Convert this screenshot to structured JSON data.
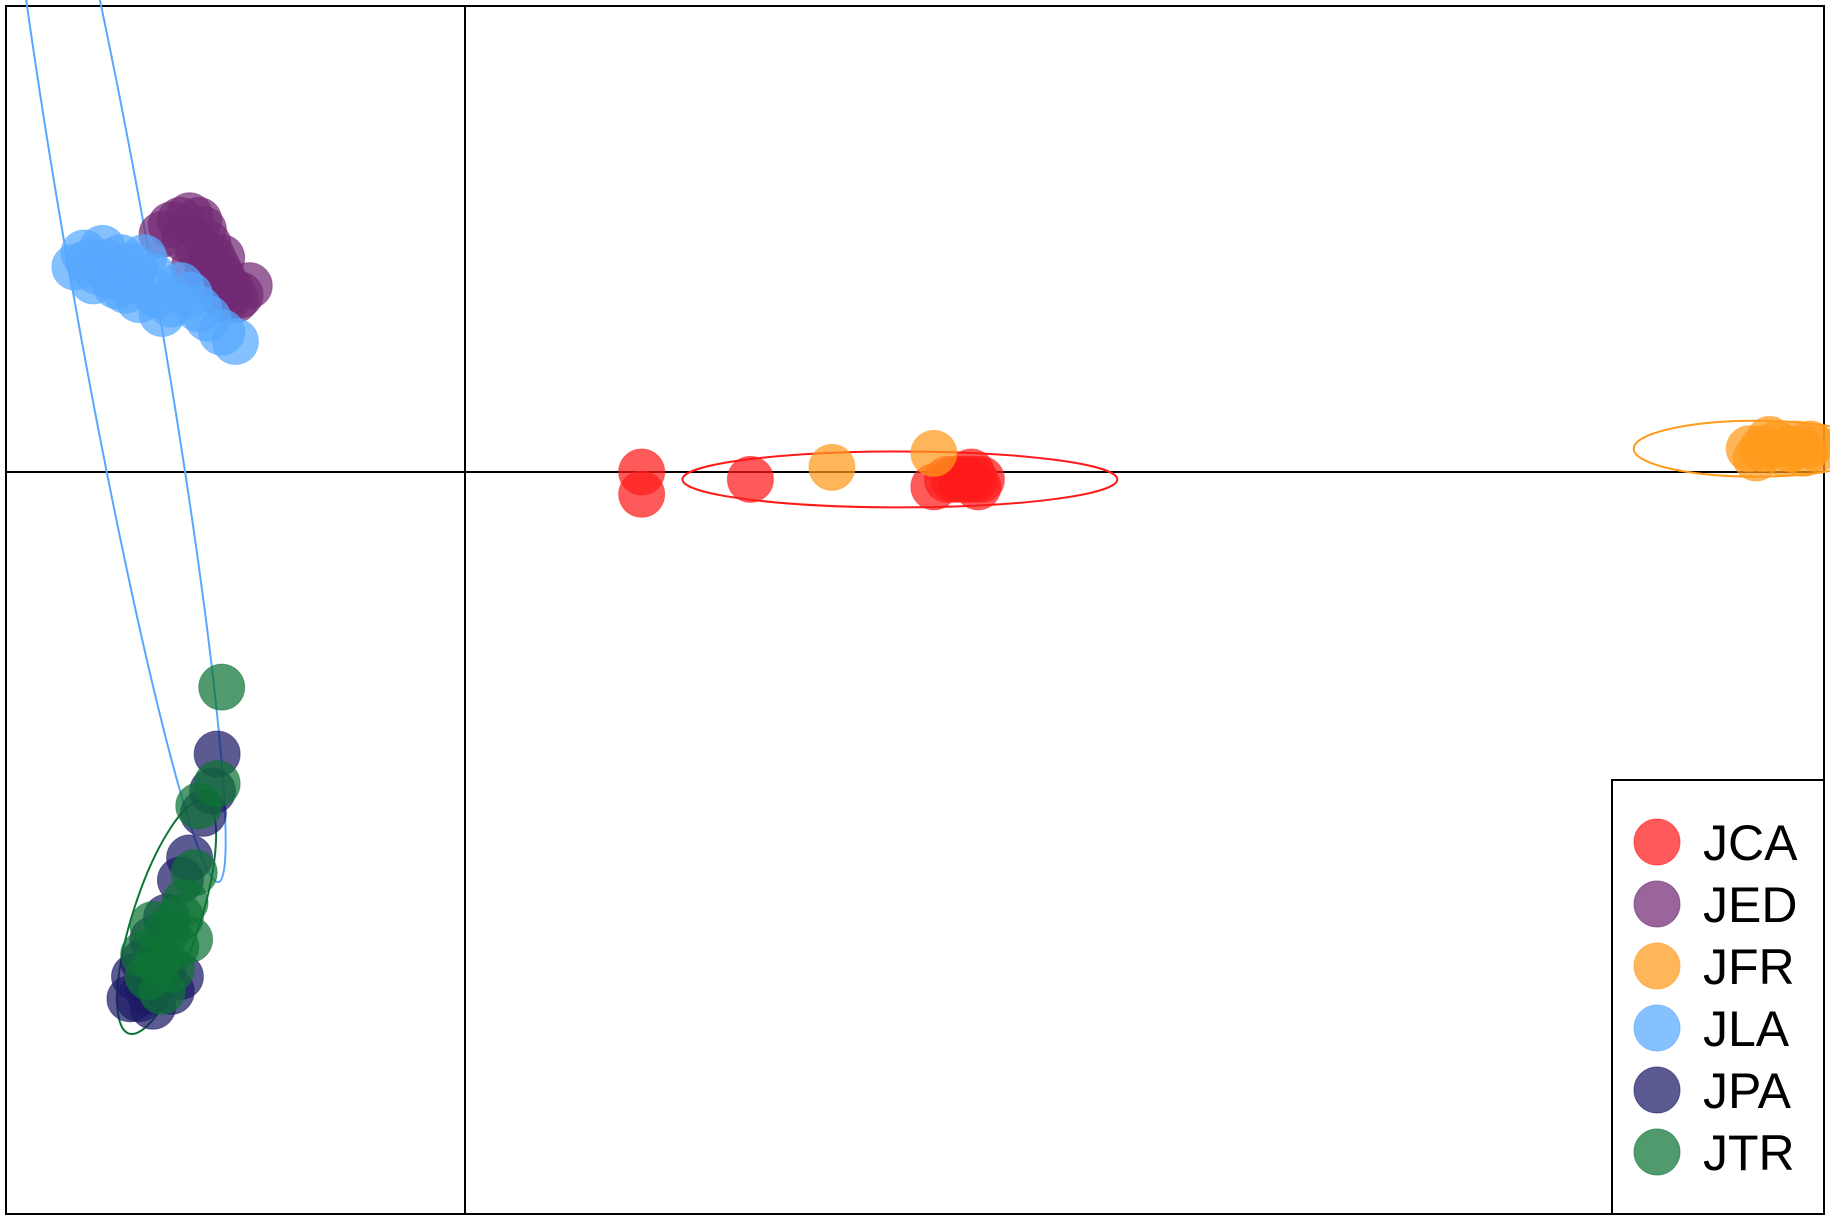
{
  "chart_data": {
    "type": "scatter",
    "title": "",
    "xlabel": "",
    "ylabel": "",
    "xlim": [
      -1,
      2
    ],
    "ylim": [
      -1,
      1
    ],
    "grid": false,
    "axes_lines": {
      "x": 0,
      "y": 0
    },
    "legend_position": "bottom-right",
    "series": [
      {
        "name": "JCA",
        "color": "#ff1a1a",
        "points": [
          [
            0.26,
            0.0
          ],
          [
            0.26,
            -0.03
          ],
          [
            0.42,
            -0.01
          ],
          [
            0.69,
            -0.02
          ],
          [
            0.71,
            -0.01
          ],
          [
            0.72,
            -0.01
          ],
          [
            0.73,
            -0.01
          ],
          [
            0.74,
            -0.01
          ],
          [
            0.75,
            -0.01
          ],
          [
            0.745,
            0.0
          ],
          [
            0.755,
            -0.02
          ],
          [
            0.76,
            -0.01
          ]
        ],
        "ellipse": {
          "cx": 0.64,
          "cy": -0.01,
          "rx": 0.32,
          "ry": 0.01,
          "angle": 0
        }
      },
      {
        "name": "JED",
        "color": "#722a73",
        "points": [
          [
            -0.66,
            0.51
          ],
          [
            -0.64,
            0.53
          ],
          [
            -0.62,
            0.54
          ],
          [
            -0.6,
            0.55
          ],
          [
            -0.58,
            0.54
          ],
          [
            -0.57,
            0.52
          ],
          [
            -0.56,
            0.49
          ],
          [
            -0.55,
            0.46
          ],
          [
            -0.54,
            0.44
          ],
          [
            -0.53,
            0.42
          ],
          [
            -0.52,
            0.4
          ],
          [
            -0.51,
            0.39
          ],
          [
            -0.58,
            0.48
          ],
          [
            -0.61,
            0.5
          ],
          [
            -0.59,
            0.44
          ],
          [
            -0.56,
            0.43
          ],
          [
            -0.53,
            0.46
          ],
          [
            -0.52,
            0.37
          ],
          [
            -0.49,
            0.38
          ],
          [
            -0.47,
            0.4
          ],
          [
            -0.5,
            0.37
          ],
          [
            -0.55,
            0.41
          ]
        ]
      },
      {
        "name": "JFR",
        "color": "#ff9a1a",
        "points": [
          [
            0.54,
            0.01
          ],
          [
            0.69,
            0.04
          ],
          [
            1.89,
            0.05
          ],
          [
            1.91,
            0.05
          ],
          [
            1.93,
            0.06
          ],
          [
            1.95,
            0.05
          ],
          [
            1.97,
            0.04
          ],
          [
            1.99,
            0.05
          ],
          [
            1.9,
            0.03
          ],
          [
            1.94,
            0.04
          ],
          [
            1.96,
            0.06
          ],
          [
            1.92,
            0.07
          ],
          [
            1.98,
            0.06
          ]
        ],
        "ellipse": {
          "cx": 1.9,
          "cy": 0.05,
          "rx": 0.18,
          "ry": 0.01,
          "angle": 0
        }
      },
      {
        "name": "JLA",
        "color": "#56a8ff",
        "points": [
          [
            -0.85,
            0.44
          ],
          [
            -0.83,
            0.47
          ],
          [
            -0.82,
            0.45
          ],
          [
            -0.8,
            0.43
          ],
          [
            -0.78,
            0.45
          ],
          [
            -0.77,
            0.42
          ],
          [
            -0.76,
            0.4
          ],
          [
            -0.74,
            0.39
          ],
          [
            -0.73,
            0.41
          ],
          [
            -0.72,
            0.44
          ],
          [
            -0.7,
            0.46
          ],
          [
            -0.68,
            0.42
          ],
          [
            -0.67,
            0.38
          ],
          [
            -0.64,
            0.36
          ],
          [
            -0.62,
            0.4
          ],
          [
            -0.6,
            0.38
          ],
          [
            -0.58,
            0.35
          ],
          [
            -0.56,
            0.33
          ],
          [
            -0.53,
            0.3
          ],
          [
            -0.5,
            0.28
          ],
          [
            -0.81,
            0.41
          ],
          [
            -0.79,
            0.48
          ],
          [
            -0.75,
            0.46
          ],
          [
            -0.71,
            0.37
          ],
          [
            -0.66,
            0.34
          ]
        ],
        "ellipse": {
          "cx": -0.77,
          "cy": 0.42,
          "rx": 0.06,
          "ry": 0.22,
          "angle": -10
        }
      },
      {
        "name": "JPA",
        "color": "#1c1a66",
        "points": [
          [
            -0.54,
            -0.38
          ],
          [
            -0.55,
            -0.43
          ],
          [
            -0.57,
            -0.46
          ],
          [
            -0.6,
            -0.52
          ],
          [
            -0.62,
            -0.55
          ],
          [
            -0.65,
            -0.6
          ],
          [
            -0.68,
            -0.63
          ],
          [
            -0.7,
            -0.66
          ],
          [
            -0.72,
            -0.68
          ],
          [
            -0.71,
            -0.71
          ],
          [
            -0.68,
            -0.72
          ],
          [
            -0.64,
            -0.7
          ],
          [
            -0.66,
            -0.67
          ],
          [
            -0.69,
            -0.7
          ],
          [
            -0.62,
            -0.68
          ],
          [
            -0.73,
            -0.71
          ]
        ]
      },
      {
        "name": "JTR",
        "color": "#0e7335",
        "points": [
          [
            -0.53,
            -0.29
          ],
          [
            -0.54,
            -0.42
          ],
          [
            -0.58,
            -0.45
          ],
          [
            -0.59,
            -0.54
          ],
          [
            -0.61,
            -0.58
          ],
          [
            -0.63,
            -0.64
          ],
          [
            -0.65,
            -0.62
          ],
          [
            -0.67,
            -0.66
          ],
          [
            -0.69,
            -0.68
          ],
          [
            -0.66,
            -0.7
          ],
          [
            -0.64,
            -0.67
          ],
          [
            -0.7,
            -0.65
          ],
          [
            -0.62,
            -0.6
          ],
          [
            -0.68,
            -0.61
          ],
          [
            -0.6,
            -0.63
          ]
        ],
        "ellipse": {
          "cx": -0.65,
          "cy": -0.6,
          "rx": 0.18,
          "ry": 0.012,
          "angle": -72
        }
      }
    ]
  }
}
